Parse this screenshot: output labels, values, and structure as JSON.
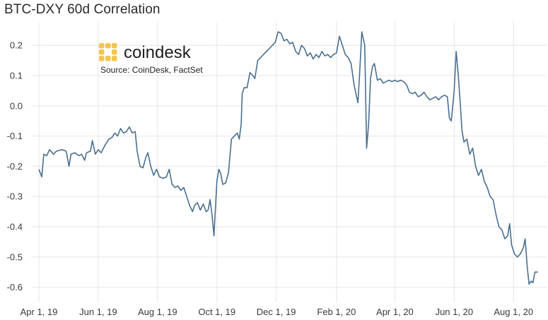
{
  "colors": {
    "line": "#4a6f8f",
    "grid": "#e6e6e6",
    "logo": "#f2c64d"
  },
  "branding": {
    "logo_icon": "coindesk-logo-icon",
    "logo_text": "coindesk",
    "source": "Source: CoinDesk, FactSet"
  },
  "chart_data": {
    "type": "line",
    "title": "BTC-DXY 60d Correlation",
    "xlabel": "",
    "ylabel": "",
    "ylim": [
      -0.65,
      0.28
    ],
    "xlim": [
      "2019-03-24",
      "2020-09-04"
    ],
    "grid": true,
    "legend": "none",
    "yticks": [
      {
        "value": 0.2,
        "label": "0.2"
      },
      {
        "value": 0.1,
        "label": "0.1"
      },
      {
        "value": 0.0,
        "label": "0.0"
      },
      {
        "value": -0.1,
        "label": "-0.1"
      },
      {
        "value": -0.2,
        "label": "-0.2"
      },
      {
        "value": -0.3,
        "label": "-0.3"
      },
      {
        "value": -0.4,
        "label": "-0.4"
      },
      {
        "value": -0.5,
        "label": "-0.5"
      },
      {
        "value": -0.6,
        "label": "-0.6"
      }
    ],
    "xticks": [
      {
        "value": "2019-04-01",
        "label": "Apr 1, 19"
      },
      {
        "value": "2019-06-01",
        "label": "Jun 1, 19"
      },
      {
        "value": "2019-08-01",
        "label": "Aug 1, 19"
      },
      {
        "value": "2019-10-01",
        "label": "Oct 1, 19"
      },
      {
        "value": "2019-12-01",
        "label": "Dec 1, 19"
      },
      {
        "value": "2020-02-01",
        "label": "Feb 1, 20"
      },
      {
        "value": "2020-04-01",
        "label": "Apr 1, 20"
      },
      {
        "value": "2020-06-01",
        "label": "Jun 1, 20"
      },
      {
        "value": "2020-08-01",
        "label": "Aug 1, 20"
      }
    ],
    "series": [
      {
        "points": [
          [
            "2019-04-01",
            -0.21
          ],
          [
            "2019-04-04",
            -0.235
          ],
          [
            "2019-04-06",
            -0.16
          ],
          [
            "2019-04-09",
            -0.165
          ],
          [
            "2019-04-12",
            -0.145
          ],
          [
            "2019-04-16",
            -0.16
          ],
          [
            "2019-04-19",
            -0.15
          ],
          [
            "2019-04-25",
            -0.145
          ],
          [
            "2019-04-29",
            -0.15
          ],
          [
            "2019-05-02",
            -0.2
          ],
          [
            "2019-05-04",
            -0.16
          ],
          [
            "2019-05-08",
            -0.155
          ],
          [
            "2019-05-12",
            -0.165
          ],
          [
            "2019-05-15",
            -0.16
          ],
          [
            "2019-05-18",
            -0.18
          ],
          [
            "2019-05-20",
            -0.155
          ],
          [
            "2019-05-24",
            -0.15
          ],
          [
            "2019-05-26",
            -0.115
          ],
          [
            "2019-05-29",
            -0.16
          ],
          [
            "2019-06-01",
            -0.145
          ],
          [
            "2019-06-04",
            -0.155
          ],
          [
            "2019-06-08",
            -0.13
          ],
          [
            "2019-06-12",
            -0.11
          ],
          [
            "2019-06-15",
            -0.105
          ],
          [
            "2019-06-18",
            -0.09
          ],
          [
            "2019-06-21",
            -0.1
          ],
          [
            "2019-06-24",
            -0.075
          ],
          [
            "2019-06-27",
            -0.09
          ],
          [
            "2019-06-30",
            -0.085
          ],
          [
            "2019-07-03",
            -0.07
          ],
          [
            "2019-07-06",
            -0.09
          ],
          [
            "2019-07-09",
            -0.085
          ],
          [
            "2019-07-11",
            -0.15
          ],
          [
            "2019-07-14",
            -0.2
          ],
          [
            "2019-07-17",
            -0.205
          ],
          [
            "2019-07-20",
            -0.17
          ],
          [
            "2019-07-22",
            -0.155
          ],
          [
            "2019-07-25",
            -0.2
          ],
          [
            "2019-07-28",
            -0.23
          ],
          [
            "2019-07-31",
            -0.21
          ],
          [
            "2019-08-03",
            -0.235
          ],
          [
            "2019-08-07",
            -0.24
          ],
          [
            "2019-08-10",
            -0.235
          ],
          [
            "2019-08-13",
            -0.21
          ],
          [
            "2019-08-16",
            -0.26
          ],
          [
            "2019-08-19",
            -0.27
          ],
          [
            "2019-08-22",
            -0.265
          ],
          [
            "2019-08-25",
            -0.28
          ],
          [
            "2019-08-28",
            -0.27
          ],
          [
            "2019-08-31",
            -0.3
          ],
          [
            "2019-09-03",
            -0.33
          ],
          [
            "2019-09-06",
            -0.35
          ],
          [
            "2019-09-08",
            -0.33
          ],
          [
            "2019-09-11",
            -0.32
          ],
          [
            "2019-09-14",
            -0.345
          ],
          [
            "2019-09-17",
            -0.325
          ],
          [
            "2019-09-20",
            -0.35
          ],
          [
            "2019-09-22",
            -0.345
          ],
          [
            "2019-09-24",
            -0.31
          ],
          [
            "2019-09-26",
            -0.36
          ],
          [
            "2019-09-28",
            -0.43
          ],
          [
            "2019-10-01",
            -0.25
          ],
          [
            "2019-10-03",
            -0.21
          ],
          [
            "2019-10-05",
            -0.225
          ],
          [
            "2019-10-07",
            -0.26
          ],
          [
            "2019-10-10",
            -0.255
          ],
          [
            "2019-10-13",
            -0.22
          ],
          [
            "2019-10-16",
            -0.11
          ],
          [
            "2019-10-19",
            -0.1
          ],
          [
            "2019-10-22",
            -0.09
          ],
          [
            "2019-10-24",
            -0.11
          ],
          [
            "2019-10-26",
            -0.06
          ],
          [
            "2019-10-27",
            0.04
          ],
          [
            "2019-10-29",
            0.06
          ],
          [
            "2019-11-01",
            0.06
          ],
          [
            "2019-11-04",
            0.11
          ],
          [
            "2019-11-07",
            0.1
          ],
          [
            "2019-11-09",
            0.09
          ],
          [
            "2019-11-12",
            0.15
          ],
          [
            "2019-11-15",
            0.16
          ],
          [
            "2019-11-18",
            0.17
          ],
          [
            "2019-11-21",
            0.18
          ],
          [
            "2019-11-24",
            0.19
          ],
          [
            "2019-11-27",
            0.2
          ],
          [
            "2019-11-30",
            0.21
          ],
          [
            "2019-12-03",
            0.245
          ],
          [
            "2019-12-06",
            0.24
          ],
          [
            "2019-12-09",
            0.215
          ],
          [
            "2019-12-12",
            0.22
          ],
          [
            "2019-12-15",
            0.205
          ],
          [
            "2019-12-18",
            0.21
          ],
          [
            "2019-12-21",
            0.18
          ],
          [
            "2019-12-24",
            0.17
          ],
          [
            "2019-12-27",
            0.2
          ],
          [
            "2019-12-30",
            0.19
          ],
          [
            "2020-01-02",
            0.165
          ],
          [
            "2020-01-05",
            0.175
          ],
          [
            "2020-01-08",
            0.155
          ],
          [
            "2020-01-11",
            0.17
          ],
          [
            "2020-01-14",
            0.16
          ],
          [
            "2020-01-17",
            0.18
          ],
          [
            "2020-01-20",
            0.165
          ],
          [
            "2020-01-23",
            0.17
          ],
          [
            "2020-01-26",
            0.16
          ],
          [
            "2020-01-29",
            0.17
          ],
          [
            "2020-02-01",
            0.175
          ],
          [
            "2020-02-04",
            0.23
          ],
          [
            "2020-02-07",
            0.2
          ],
          [
            "2020-02-10",
            0.17
          ],
          [
            "2020-02-13",
            0.16
          ],
          [
            "2020-02-16",
            0.14
          ],
          [
            "2020-02-19",
            0.07
          ],
          [
            "2020-02-21",
            0.04
          ],
          [
            "2020-02-23",
            0.01
          ],
          [
            "2020-02-25",
            0.12
          ],
          [
            "2020-02-27",
            0.245
          ],
          [
            "2020-03-01",
            0.2
          ],
          [
            "2020-03-03",
            -0.14
          ],
          [
            "2020-03-05",
            -0.06
          ],
          [
            "2020-03-07",
            0.09
          ],
          [
            "2020-03-09",
            0.13
          ],
          [
            "2020-03-11",
            0.14
          ],
          [
            "2020-03-14",
            0.085
          ],
          [
            "2020-03-17",
            0.09
          ],
          [
            "2020-03-20",
            0.075
          ],
          [
            "2020-03-23",
            0.08
          ],
          [
            "2020-03-26",
            0.085
          ],
          [
            "2020-03-29",
            0.08
          ],
          [
            "2020-04-01",
            0.085
          ],
          [
            "2020-04-04",
            0.08
          ],
          [
            "2020-04-07",
            0.085
          ],
          [
            "2020-04-10",
            0.08
          ],
          [
            "2020-04-13",
            0.07
          ],
          [
            "2020-04-16",
            0.045
          ],
          [
            "2020-04-19",
            0.04
          ],
          [
            "2020-04-22",
            0.045
          ],
          [
            "2020-04-25",
            0.03
          ],
          [
            "2020-04-28",
            0.035
          ],
          [
            "2020-05-01",
            0.045
          ],
          [
            "2020-05-04",
            0.03
          ],
          [
            "2020-05-07",
            0.02
          ],
          [
            "2020-05-10",
            0.025
          ],
          [
            "2020-05-13",
            0.03
          ],
          [
            "2020-05-16",
            0.02
          ],
          [
            "2020-05-19",
            0.03
          ],
          [
            "2020-05-22",
            0.035
          ],
          [
            "2020-05-25",
            0.03
          ],
          [
            "2020-05-27",
            -0.04
          ],
          [
            "2020-05-29",
            -0.05
          ],
          [
            "2020-06-01",
            0.05
          ],
          [
            "2020-06-03",
            0.18
          ],
          [
            "2020-06-05",
            0.11
          ],
          [
            "2020-06-07",
            0.02
          ],
          [
            "2020-06-09",
            -0.08
          ],
          [
            "2020-06-11",
            -0.12
          ],
          [
            "2020-06-14",
            -0.11
          ],
          [
            "2020-06-17",
            -0.16
          ],
          [
            "2020-06-20",
            -0.14
          ],
          [
            "2020-06-23",
            -0.2
          ],
          [
            "2020-06-26",
            -0.23
          ],
          [
            "2020-06-29",
            -0.21
          ],
          [
            "2020-07-02",
            -0.25
          ],
          [
            "2020-07-05",
            -0.27
          ],
          [
            "2020-07-08",
            -0.3
          ],
          [
            "2020-07-11",
            -0.31
          ],
          [
            "2020-07-14",
            -0.36
          ],
          [
            "2020-07-17",
            -0.4
          ],
          [
            "2020-07-20",
            -0.41
          ],
          [
            "2020-07-23",
            -0.44
          ],
          [
            "2020-07-26",
            -0.43
          ],
          [
            "2020-07-28",
            -0.39
          ],
          [
            "2020-07-30",
            -0.46
          ],
          [
            "2020-08-02",
            -0.49
          ],
          [
            "2020-08-05",
            -0.5
          ],
          [
            "2020-08-08",
            -0.49
          ],
          [
            "2020-08-11",
            -0.47
          ],
          [
            "2020-08-13",
            -0.44
          ],
          [
            "2020-08-15",
            -0.53
          ],
          [
            "2020-08-17",
            -0.59
          ],
          [
            "2020-08-19",
            -0.58
          ],
          [
            "2020-08-21",
            -0.585
          ],
          [
            "2020-08-23",
            -0.55
          ],
          [
            "2020-08-26",
            -0.55
          ]
        ]
      }
    ]
  }
}
